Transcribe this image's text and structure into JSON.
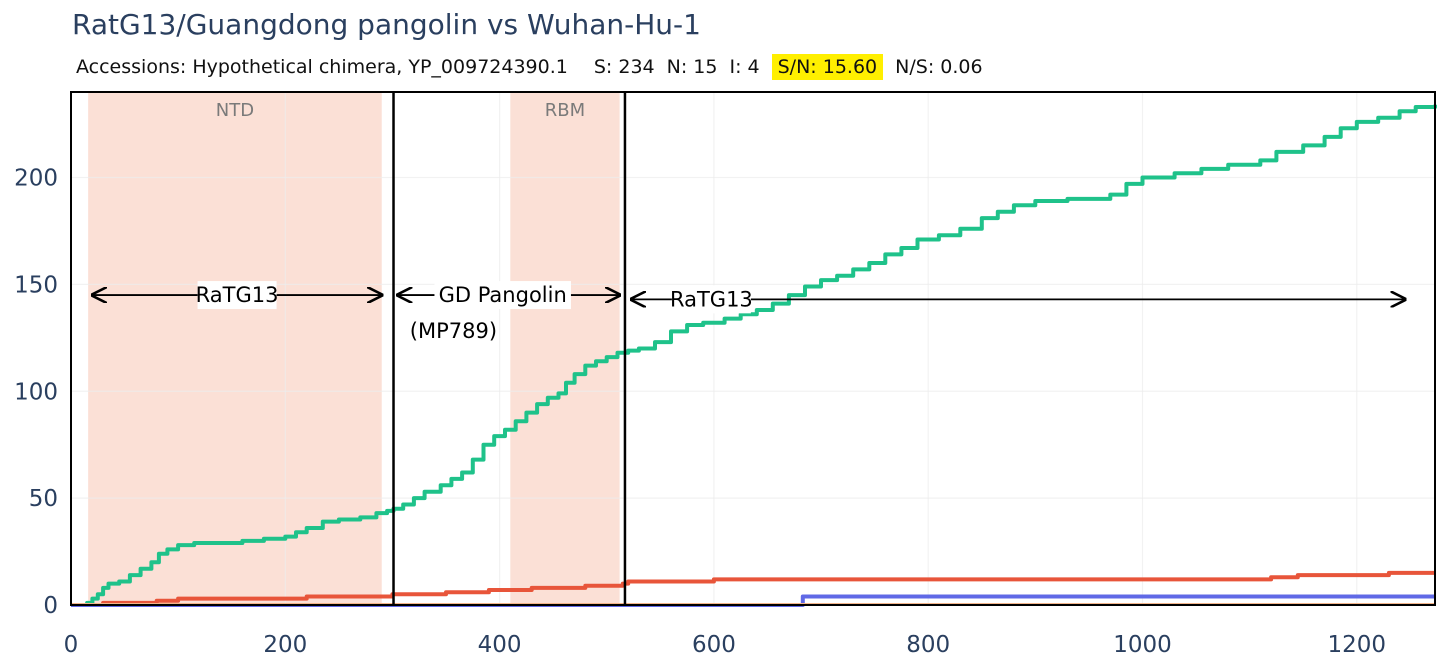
{
  "title": "RatG13/Guangdong pangolin vs Wuhan-Hu-1",
  "subtitle": {
    "accessions": "Accessions: Hypothetical chimera, YP_009724390.1",
    "s": "S: 234",
    "n": "N: 15",
    "i": "I: 4",
    "sn": "S/N: 15.60",
    "ns": "N/S: 0.06"
  },
  "colors": {
    "highlight": "#ffef00",
    "region": "#fbe0d6",
    "s_line": "#1fc28a",
    "n_line": "#e8553a",
    "i_line": "#6069e6",
    "axis_text": "#2a3f5f",
    "grid": "#ececec"
  },
  "chart_data": {
    "type": "line",
    "title": "RatG13/Guangdong pangolin vs Wuhan-Hu-1",
    "xlabel": "",
    "ylabel": "",
    "xlim": [
      0,
      1273
    ],
    "ylim": [
      0,
      240
    ],
    "xticks": [
      0,
      200,
      400,
      600,
      800,
      1000,
      1200
    ],
    "yticks": [
      0,
      50,
      100,
      150,
      200
    ],
    "grid": true,
    "regions": [
      {
        "label": "NTD",
        "x0": 16,
        "x1": 290
      },
      {
        "label": "RBM",
        "x0": 410,
        "x1": 512
      }
    ],
    "boundaries": [
      301,
      517
    ],
    "annotations": [
      {
        "text": "RaTG13",
        "x_from": 20,
        "x_to": 290,
        "y": 145
      },
      {
        "text": "GD Pangolin",
        "text2": "(MP789)",
        "x_from": 305,
        "x_to": 512,
        "y": 145
      },
      {
        "text": "RaTG13",
        "x_from": 523,
        "x_to": 1245,
        "y": 143
      }
    ],
    "series": [
      {
        "name": "S",
        "step": true,
        "points": [
          [
            10,
            0
          ],
          [
            15,
            1
          ],
          [
            20,
            3
          ],
          [
            25,
            5
          ],
          [
            30,
            8
          ],
          [
            35,
            10
          ],
          [
            45,
            11
          ],
          [
            55,
            14
          ],
          [
            65,
            17
          ],
          [
            75,
            20
          ],
          [
            82,
            24
          ],
          [
            90,
            26
          ],
          [
            100,
            28
          ],
          [
            115,
            29
          ],
          [
            140,
            29
          ],
          [
            160,
            30
          ],
          [
            180,
            31
          ],
          [
            200,
            32
          ],
          [
            210,
            34
          ],
          [
            220,
            36
          ],
          [
            235,
            39
          ],
          [
            250,
            40
          ],
          [
            270,
            41
          ],
          [
            285,
            43
          ],
          [
            295,
            44
          ],
          [
            301,
            45
          ],
          [
            310,
            47
          ],
          [
            320,
            50
          ],
          [
            330,
            53
          ],
          [
            345,
            56
          ],
          [
            355,
            59
          ],
          [
            365,
            62
          ],
          [
            375,
            68
          ],
          [
            385,
            75
          ],
          [
            395,
            79
          ],
          [
            405,
            82
          ],
          [
            415,
            86
          ],
          [
            425,
            90
          ],
          [
            435,
            94
          ],
          [
            445,
            97
          ],
          [
            455,
            99
          ],
          [
            462,
            104
          ],
          [
            470,
            108
          ],
          [
            480,
            112
          ],
          [
            490,
            114
          ],
          [
            500,
            116
          ],
          [
            510,
            118
          ],
          [
            520,
            119
          ],
          [
            530,
            120
          ],
          [
            545,
            123
          ],
          [
            560,
            128
          ],
          [
            575,
            131
          ],
          [
            590,
            132
          ],
          [
            610,
            134
          ],
          [
            625,
            136
          ],
          [
            640,
            138
          ],
          [
            655,
            141
          ],
          [
            670,
            145
          ],
          [
            685,
            149
          ],
          [
            700,
            152
          ],
          [
            715,
            154
          ],
          [
            730,
            157
          ],
          [
            745,
            160
          ],
          [
            760,
            164
          ],
          [
            775,
            167
          ],
          [
            790,
            171
          ],
          [
            810,
            173
          ],
          [
            830,
            176
          ],
          [
            850,
            181
          ],
          [
            865,
            184
          ],
          [
            880,
            187
          ],
          [
            900,
            189
          ],
          [
            930,
            190
          ],
          [
            970,
            192
          ],
          [
            985,
            197
          ],
          [
            1000,
            200
          ],
          [
            1030,
            202
          ],
          [
            1055,
            204
          ],
          [
            1080,
            206
          ],
          [
            1110,
            208
          ],
          [
            1125,
            212
          ],
          [
            1150,
            215
          ],
          [
            1170,
            219
          ],
          [
            1185,
            223
          ],
          [
            1200,
            226
          ],
          [
            1220,
            228
          ],
          [
            1240,
            231
          ],
          [
            1255,
            233
          ],
          [
            1273,
            234
          ]
        ]
      },
      {
        "name": "N",
        "step": true,
        "points": [
          [
            0,
            0
          ],
          [
            30,
            1
          ],
          [
            80,
            2
          ],
          [
            100,
            3
          ],
          [
            220,
            4
          ],
          [
            300,
            5
          ],
          [
            350,
            6
          ],
          [
            390,
            7
          ],
          [
            430,
            8
          ],
          [
            480,
            9
          ],
          [
            515,
            10
          ],
          [
            520,
            11
          ],
          [
            600,
            12
          ],
          [
            1000,
            12
          ],
          [
            1120,
            13
          ],
          [
            1145,
            14
          ],
          [
            1230,
            15
          ],
          [
            1273,
            15
          ]
        ]
      },
      {
        "name": "I",
        "step": true,
        "points": [
          [
            0,
            0
          ],
          [
            678,
            0
          ],
          [
            683,
            4
          ],
          [
            1273,
            4
          ]
        ]
      }
    ]
  }
}
